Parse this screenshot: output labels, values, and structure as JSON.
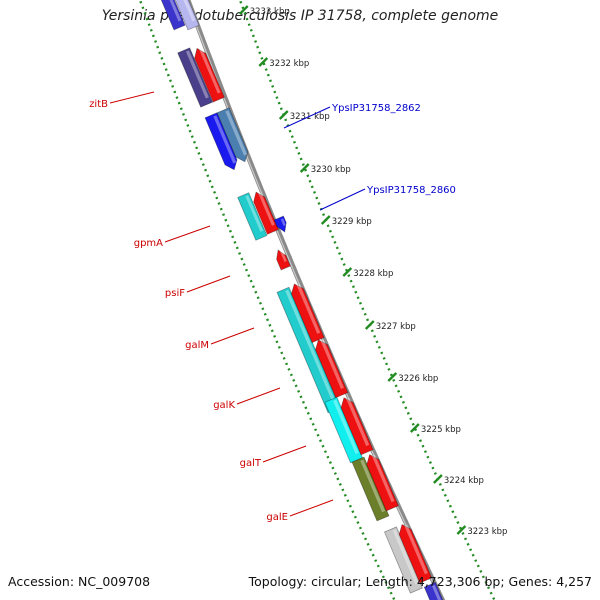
{
  "title": "Yersinia pseudotuberculosis IP 31758, complete genome",
  "footer": {
    "accession": "Accession: NC_009708",
    "topology": "Topology: circular; Length: 4,723,306 bp; Genes: 4,257"
  },
  "colors": {
    "backbone": "#888888",
    "ticks": "#228b22",
    "red_label": "#cc0000",
    "blue_label": "#0000cc"
  },
  "ticks": [
    {
      "label": "3233 kbp"
    },
    {
      "label": "3232 kbp"
    },
    {
      "label": "3231 kbp"
    },
    {
      "label": "3230 kbp"
    },
    {
      "label": "3229 kbp"
    },
    {
      "label": "3228 kbp"
    },
    {
      "label": "3227 kbp"
    },
    {
      "label": "3226 kbp"
    },
    {
      "label": "3225 kbp"
    },
    {
      "label": "3224 kbp"
    },
    {
      "label": "3223 kbp"
    }
  ],
  "gene_labels_left": [
    {
      "name": "zitB"
    },
    {
      "name": "gpmA"
    },
    {
      "name": "psiF"
    },
    {
      "name": "galM"
    },
    {
      "name": "galK"
    },
    {
      "name": "galT"
    },
    {
      "name": "galE"
    }
  ],
  "gene_labels_right": [
    {
      "name": "YpsIP31758_2862"
    },
    {
      "name": "YpsIP31758_2860"
    }
  ]
}
